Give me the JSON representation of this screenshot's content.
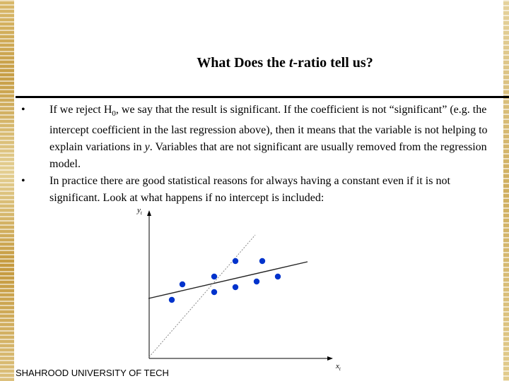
{
  "slide": {
    "title_pre": "What Does the ",
    "title_em": "t",
    "title_post": "-ratio tell us?",
    "bullet1": {
      "marker": "•",
      "t1": "If we reject H",
      "sub": "0",
      "t2": ", we say that the result is significant. If the coefficient is not “significant” (e.g. the intercept coefficient in the last regression above), then it means that the variable is not helping to explain variations in ",
      "em": "y",
      "t3": ". Variables that are not significant are usually removed from the regression model."
    },
    "bullet2": {
      "marker": "•",
      "text": "In practice there are good statistical reasons for always having a constant even if it is not significant. Look at what happens if no intercept  is included:"
    },
    "footer": "SHAHROOD UNIVERSITY OF TECH"
  },
  "chart_data": {
    "type": "scatter",
    "ylabel": "y",
    "ylabel_sub": "t",
    "xlabel": "x",
    "xlabel_sub": "t",
    "points": [
      {
        "x": 243,
        "y": 425
      },
      {
        "x": 258,
        "y": 403
      },
      {
        "x": 303,
        "y": 392
      },
      {
        "x": 303,
        "y": 414
      },
      {
        "x": 333,
        "y": 370
      },
      {
        "x": 333,
        "y": 407
      },
      {
        "x": 363,
        "y": 399
      },
      {
        "x": 371,
        "y": 370
      },
      {
        "x": 393,
        "y": 392
      }
    ],
    "lines": [
      {
        "name": "fitted-with-intercept",
        "style": "solid",
        "from": [
          210,
          423
        ],
        "to": [
          435,
          371
        ]
      },
      {
        "name": "fitted-through-origin",
        "style": "dotted",
        "from": [
          211,
          506
        ],
        "to": [
          361,
          333
        ]
      }
    ],
    "point_color": "#0033cc"
  }
}
